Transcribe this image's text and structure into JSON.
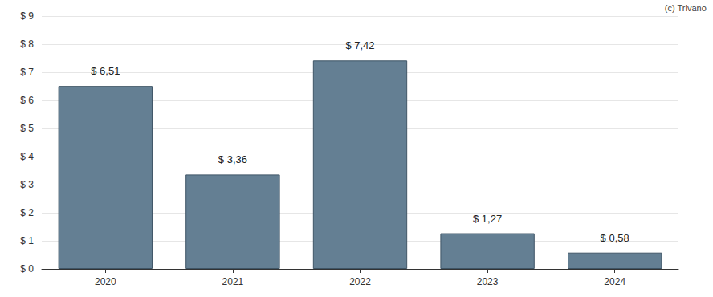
{
  "chart_data": {
    "type": "bar",
    "annotations": [
      "(c) Trivano"
    ],
    "categories": [
      "2020",
      "2021",
      "2022",
      "2023",
      "2024"
    ],
    "values": [
      6.51,
      3.36,
      7.42,
      1.27,
      0.58
    ],
    "value_labels": [
      "$ 6,51",
      "$ 3,36",
      "$ 7,42",
      "$ 1,27",
      "$ 0,58"
    ],
    "data_labels": true,
    "color": "#647f93",
    "ylim": [
      0,
      9
    ],
    "yticks": [
      {
        "value": 0,
        "label": "$ 0"
      },
      {
        "value": 1,
        "label": "$ 1"
      },
      {
        "value": 2,
        "label": "$ 2"
      },
      {
        "value": 3,
        "label": "$ 3"
      },
      {
        "value": 4,
        "label": "$ 4"
      },
      {
        "value": 5,
        "label": "$ 5"
      },
      {
        "value": 6,
        "label": "$ 6"
      },
      {
        "value": 7,
        "label": "$ 7"
      },
      {
        "value": 8,
        "label": "$ 8"
      },
      {
        "value": 9,
        "label": "$ 9"
      }
    ],
    "grid": true
  }
}
